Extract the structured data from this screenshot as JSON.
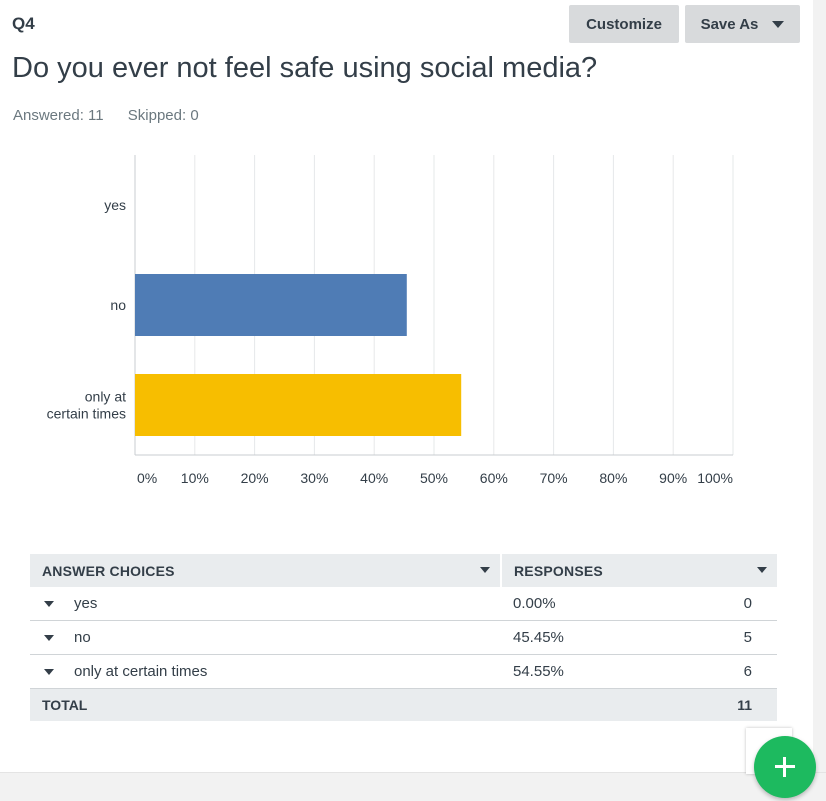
{
  "question": {
    "number": "Q4",
    "title": "Do you ever not feel safe using social media?",
    "answered_label": "Answered: 11",
    "skipped_label": "Skipped: 0"
  },
  "toolbar": {
    "customize_label": "Customize",
    "saveas_label": "Save As"
  },
  "colors": {
    "bar_no": "#4f7cb5",
    "bar_times": "#f7be00",
    "fab": "#1dba5f"
  },
  "chart_data": {
    "type": "bar",
    "orientation": "horizontal",
    "categories": [
      [
        "yes"
      ],
      [
        "no"
      ],
      [
        "only at",
        "certain times"
      ]
    ],
    "values": [
      0,
      45.45,
      54.55
    ],
    "colors": [
      "#4f7cb5",
      "#4f7cb5",
      "#f7be00"
    ],
    "xlim": [
      0,
      100
    ],
    "xticks": [
      "0%",
      "10%",
      "20%",
      "30%",
      "40%",
      "50%",
      "60%",
      "70%",
      "80%",
      "90%",
      "100%"
    ],
    "grid": true
  },
  "table": {
    "headers": [
      "ANSWER CHOICES",
      "RESPONSES"
    ],
    "rows": [
      {
        "choice": "yes",
        "percent": "0.00%",
        "count": "0"
      },
      {
        "choice": "no",
        "percent": "45.45%",
        "count": "5"
      },
      {
        "choice": "only at certain times",
        "percent": "54.55%",
        "count": "6"
      }
    ],
    "total_label": "TOTAL",
    "total_count": "11"
  },
  "fab": {
    "icon": "plus-icon"
  }
}
